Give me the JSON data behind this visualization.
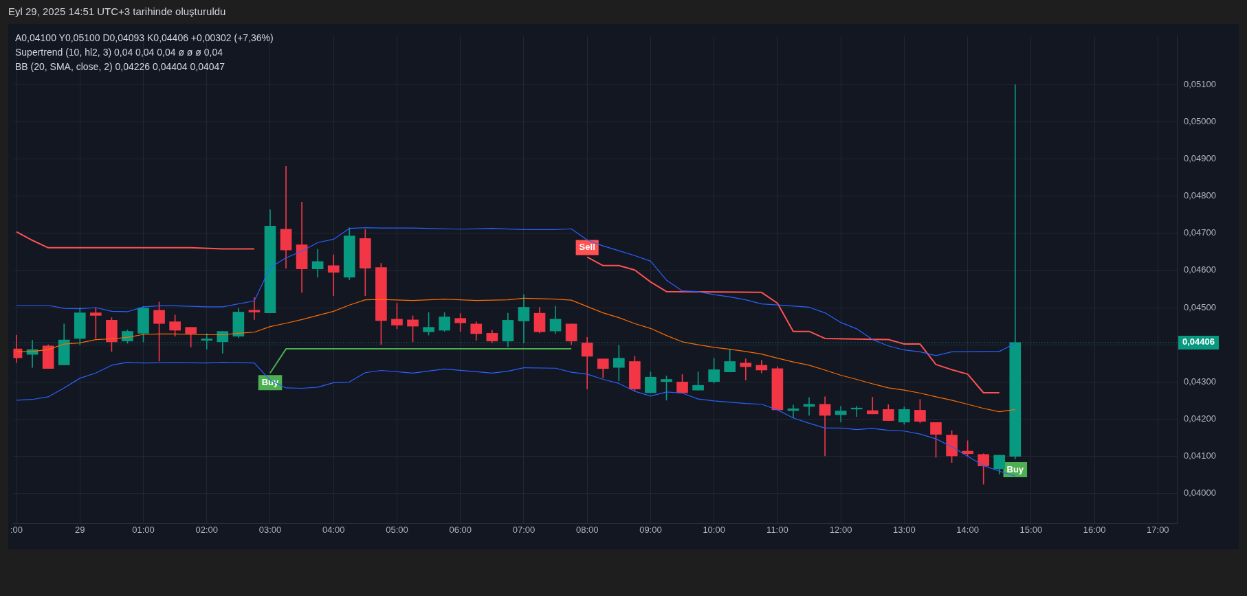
{
  "chart_data": {
    "type": "candlestick",
    "title": "Eyl 29, 2025 14:51 UTC+3 tarihinde oluşturuldu",
    "annotations": [
      "A0,04100  Y0,05100  D0,04093  K0,04406  +0,00302 (+7,36%)",
      "Supertrend (10, hl2, 3)  0,04  0,04  0,04  ø  ø  ø  0,04",
      "BB (20, SMA, close, 2)  0,04226  0,04404  0,04047",
      {
        "text": "Buy",
        "x": "2025-09-29T03:00",
        "y": 0.04324
      },
      {
        "text": "Sell",
        "x": "2025-09-29T08:00",
        "y": 0.04636
      },
      {
        "text": "Buy",
        "x": "2025-09-29T14:45",
        "y": 0.0409
      }
    ],
    "x": [
      "2025-09-28T23:00",
      "2025-09-28T23:15",
      "2025-09-28T23:30",
      "2025-09-28T23:45",
      "2025-09-29T00:00",
      "2025-09-29T00:15",
      "2025-09-29T00:30",
      "2025-09-29T00:45",
      "2025-09-29T01:00",
      "2025-09-29T01:15",
      "2025-09-29T01:30",
      "2025-09-29T01:45",
      "2025-09-29T02:00",
      "2025-09-29T02:15",
      "2025-09-29T02:30",
      "2025-09-29T02:45",
      "2025-09-29T03:00",
      "2025-09-29T03:15",
      "2025-09-29T03:30",
      "2025-09-29T03:45",
      "2025-09-29T04:00",
      "2025-09-29T04:15",
      "2025-09-29T04:30",
      "2025-09-29T04:45",
      "2025-09-29T05:00",
      "2025-09-29T05:15",
      "2025-09-29T05:30",
      "2025-09-29T05:45",
      "2025-09-29T06:00",
      "2025-09-29T06:15",
      "2025-09-29T06:30",
      "2025-09-29T06:45",
      "2025-09-29T07:00",
      "2025-09-29T07:15",
      "2025-09-29T07:30",
      "2025-09-29T07:45",
      "2025-09-29T08:00",
      "2025-09-29T08:15",
      "2025-09-29T08:30",
      "2025-09-29T08:45",
      "2025-09-29T09:00",
      "2025-09-29T09:15",
      "2025-09-29T09:30",
      "2025-09-29T09:45",
      "2025-09-29T10:00",
      "2025-09-29T10:15",
      "2025-09-29T10:30",
      "2025-09-29T10:45",
      "2025-09-29T11:00",
      "2025-09-29T11:15",
      "2025-09-29T11:30",
      "2025-09-29T11:45",
      "2025-09-29T12:00",
      "2025-09-29T12:15",
      "2025-09-29T12:30",
      "2025-09-29T12:45",
      "2025-09-29T13:00",
      "2025-09-29T13:15",
      "2025-09-29T13:30",
      "2025-09-29T13:45",
      "2025-09-29T14:00",
      "2025-09-29T14:15",
      "2025-09-29T14:30",
      "2025-09-29T14:45"
    ],
    "ohlc": [
      [
        0.04389,
        0.04426,
        0.04352,
        0.04365
      ],
      [
        0.04374,
        0.04412,
        0.04339,
        0.04387
      ],
      [
        0.04397,
        0.044,
        0.04336,
        0.04336
      ],
      [
        0.04346,
        0.04456,
        0.04346,
        0.04413
      ],
      [
        0.04417,
        0.045,
        0.044,
        0.04486
      ],
      [
        0.04486,
        0.045,
        0.04417,
        0.04479
      ],
      [
        0.04466,
        0.04473,
        0.04382,
        0.04408
      ],
      [
        0.0441,
        0.0444,
        0.04404,
        0.04436
      ],
      [
        0.04431,
        0.04503,
        0.04408,
        0.04499
      ],
      [
        0.04493,
        0.04515,
        0.04356,
        0.04457
      ],
      [
        0.04462,
        0.0448,
        0.04423,
        0.04439
      ],
      [
        0.04447,
        0.04447,
        0.04394,
        0.0443
      ],
      [
        0.04412,
        0.0443,
        0.04388,
        0.04416
      ],
      [
        0.04408,
        0.04436,
        0.04377,
        0.04436
      ],
      [
        0.04423,
        0.04498,
        0.04419,
        0.04488
      ],
      [
        0.04493,
        0.04527,
        0.04468,
        0.04488
      ],
      [
        0.04486,
        0.04763,
        0.04486,
        0.04719
      ],
      [
        0.04711,
        0.0488,
        0.04606,
        0.04655
      ],
      [
        0.04669,
        0.04784,
        0.04541,
        0.04604
      ],
      [
        0.04604,
        0.04657,
        0.04582,
        0.04624
      ],
      [
        0.04613,
        0.04642,
        0.04532,
        0.04595
      ],
      [
        0.04582,
        0.04715,
        0.04575,
        0.04693
      ],
      [
        0.04686,
        0.0471,
        0.04532,
        0.04606
      ],
      [
        0.04608,
        0.04619,
        0.04401,
        0.04465
      ],
      [
        0.04469,
        0.04512,
        0.04443,
        0.04453
      ],
      [
        0.04467,
        0.04478,
        0.04408,
        0.0445
      ],
      [
        0.04435,
        0.04487,
        0.04426,
        0.04447
      ],
      [
        0.04439,
        0.04487,
        0.04436,
        0.04475
      ],
      [
        0.04471,
        0.04484,
        0.04436,
        0.04459
      ],
      [
        0.04456,
        0.04462,
        0.04412,
        0.0443
      ],
      [
        0.04431,
        0.04439,
        0.04405,
        0.0441
      ],
      [
        0.0441,
        0.04485,
        0.04395,
        0.04466
      ],
      [
        0.04464,
        0.04535,
        0.04405,
        0.04501
      ],
      [
        0.04485,
        0.04501,
        0.04432,
        0.04435
      ],
      [
        0.04437,
        0.04504,
        0.0443,
        0.04469
      ],
      [
        0.04456,
        0.04456,
        0.04401,
        0.0441
      ],
      [
        0.04405,
        0.0442,
        0.04281,
        0.04369
      ],
      [
        0.04362,
        0.04362,
        0.04311,
        0.04336
      ],
      [
        0.04339,
        0.04399,
        0.04303,
        0.04364
      ],
      [
        0.04355,
        0.04369,
        0.04275,
        0.04281
      ],
      [
        0.04271,
        0.04327,
        0.04271,
        0.04313
      ],
      [
        0.04301,
        0.04316,
        0.04251,
        0.04307
      ],
      [
        0.043,
        0.0432,
        0.04271,
        0.04271
      ],
      [
        0.04278,
        0.04327,
        0.04278,
        0.04291
      ],
      [
        0.04301,
        0.04364,
        0.04297,
        0.04333
      ],
      [
        0.04327,
        0.04389,
        0.04327,
        0.04355
      ],
      [
        0.04351,
        0.04362,
        0.04305,
        0.04341
      ],
      [
        0.04345,
        0.04358,
        0.04324,
        0.04332
      ],
      [
        0.04336,
        0.04341,
        0.04225,
        0.04225
      ],
      [
        0.04223,
        0.04238,
        0.04204,
        0.04228
      ],
      [
        0.04234,
        0.04258,
        0.0421,
        0.0424
      ],
      [
        0.0424,
        0.0426,
        0.04101,
        0.0421
      ],
      [
        0.04212,
        0.04235,
        0.04192,
        0.04222
      ],
      [
        0.04227,
        0.04235,
        0.04207,
        0.0423
      ],
      [
        0.04223,
        0.04259,
        0.04214,
        0.04214
      ],
      [
        0.04226,
        0.04239,
        0.04196,
        0.04196
      ],
      [
        0.04192,
        0.04233,
        0.04186,
        0.04226
      ],
      [
        0.04224,
        0.04253,
        0.0419,
        0.04194
      ],
      [
        0.04191,
        0.04191,
        0.04097,
        0.04159
      ],
      [
        0.04157,
        0.04169,
        0.04083,
        0.04101
      ],
      [
        0.04114,
        0.04142,
        0.041,
        0.04107
      ],
      [
        0.04105,
        0.04107,
        0.04025,
        0.04074
      ],
      [
        0.04066,
        0.04103,
        0.04052,
        0.04103
      ],
      [
        0.041,
        0.051,
        0.04093,
        0.04406
      ]
    ],
    "colors": [
      "#f23645",
      "#089981",
      "#f23645",
      "#089981",
      "#089981",
      "#f23645",
      "#f23645",
      "#089981",
      "#089981",
      "#f23645",
      "#f23645",
      "#f23645",
      "#089981",
      "#089981",
      "#089981",
      "#f23645",
      "#089981",
      "#f23645",
      "#f23645",
      "#089981",
      "#f23645",
      "#089981",
      "#f23645",
      "#f23645",
      "#f23645",
      "#f23645",
      "#089981",
      "#089981",
      "#f23645",
      "#f23645",
      "#f23645",
      "#089981",
      "#089981",
      "#f23645",
      "#089981",
      "#f23645",
      "#f23645",
      "#f23645",
      "#089981",
      "#f23645",
      "#089981",
      "#089981",
      "#f23645",
      "#089981",
      "#089981",
      "#089981",
      "#f23645",
      "#f23645",
      "#f23645",
      "#089981",
      "#089981",
      "#f23645",
      "#089981",
      "#089981",
      "#f23645",
      "#f23645",
      "#089981",
      "#f23645",
      "#f23645",
      "#f23645",
      "#f23645",
      "#f23645",
      "#089981",
      "#089981"
    ],
    "series": [
      {
        "type": "line",
        "color": "#2962ff",
        "x": [
          "2025-09-28T23:00",
          "2025-09-28T23:30",
          "2025-09-28T23:45",
          "2025-09-29T00:00",
          "2025-09-29T00:15",
          "2025-09-29T00:30",
          "2025-09-29T00:45",
          "2025-09-29T01:00",
          "2025-09-29T01:15",
          "2025-09-29T01:30",
          "2025-09-29T02:00",
          "2025-09-29T02:15",
          "2025-09-29T02:45",
          "2025-09-29T03:00",
          "2025-09-29T03:15",
          "2025-09-29T03:30",
          "2025-09-29T03:45",
          "2025-09-29T04:00",
          "2025-09-29T04:15",
          "2025-09-29T04:30",
          "2025-09-29T04:45",
          "2025-09-29T05:15",
          "2025-09-29T06:00",
          "2025-09-29T06:30",
          "2025-09-29T07:00",
          "2025-09-29T07:30",
          "2025-09-29T07:45",
          "2025-09-29T08:00",
          "2025-09-29T08:15",
          "2025-09-29T08:30",
          "2025-09-29T08:45",
          "2025-09-29T09:00",
          "2025-09-29T09:15",
          "2025-09-29T09:30",
          "2025-09-29T09:45",
          "2025-09-29T10:00",
          "2025-09-29T10:15",
          "2025-09-29T10:30",
          "2025-09-29T10:45",
          "2025-09-29T11:00",
          "2025-09-29T11:30",
          "2025-09-29T11:45",
          "2025-09-29T12:00",
          "2025-09-29T12:15",
          "2025-09-29T12:30",
          "2025-09-29T12:45",
          "2025-09-29T13:00",
          "2025-09-29T13:15",
          "2025-09-29T13:30",
          "2025-09-29T13:45",
          "2025-09-29T14:00",
          "2025-09-29T14:15",
          "2025-09-29T14:30",
          "2025-09-29T14:45"
        ],
        "values": [
          0.04506,
          0.04506,
          0.04498,
          0.04497,
          0.045,
          0.0449,
          0.04489,
          0.04502,
          0.04505,
          0.04505,
          0.04502,
          0.04502,
          0.04518,
          0.04608,
          0.04634,
          0.04652,
          0.04675,
          0.04684,
          0.04713,
          0.04715,
          0.04714,
          0.04714,
          0.04711,
          0.04713,
          0.0471,
          0.0471,
          0.04712,
          0.04682,
          0.04666,
          0.04653,
          0.0464,
          0.04625,
          0.04574,
          0.04545,
          0.04543,
          0.04535,
          0.04529,
          0.04521,
          0.0451,
          0.04507,
          0.04501,
          0.04486,
          0.0446,
          0.04443,
          0.04414,
          0.04397,
          0.04386,
          0.04381,
          0.04371,
          0.04381,
          0.04381,
          0.04382,
          0.04382,
          0.04404
        ]
      },
      {
        "type": "line",
        "color": "#ff6d00",
        "x": [
          "2025-09-28T23:00",
          "2025-09-28T23:15",
          "2025-09-28T23:30",
          "2025-09-28T23:45",
          "2025-09-29T00:00",
          "2025-09-29T00:15",
          "2025-09-29T00:30",
          "2025-09-29T00:45",
          "2025-09-29T01:00",
          "2025-09-29T01:15",
          "2025-09-29T01:30",
          "2025-09-29T01:45",
          "2025-09-29T02:00",
          "2025-09-29T02:15",
          "2025-09-29T02:30",
          "2025-09-29T02:45",
          "2025-09-29T03:00",
          "2025-09-29T03:15",
          "2025-09-29T03:30",
          "2025-09-29T03:45",
          "2025-09-29T04:00",
          "2025-09-29T04:15",
          "2025-09-29T04:30",
          "2025-09-29T04:45",
          "2025-09-29T05:15",
          "2025-09-29T05:45",
          "2025-09-29T06:15",
          "2025-09-29T06:45",
          "2025-09-29T07:00",
          "2025-09-29T07:30",
          "2025-09-29T07:45",
          "2025-09-29T08:00",
          "2025-09-29T08:15",
          "2025-09-29T08:30",
          "2025-09-29T08:45",
          "2025-09-29T09:00",
          "2025-09-29T09:15",
          "2025-09-29T09:30",
          "2025-09-29T09:45",
          "2025-09-29T10:00",
          "2025-09-29T10:15",
          "2025-09-29T10:30",
          "2025-09-29T10:45",
          "2025-09-29T11:00",
          "2025-09-29T11:15",
          "2025-09-29T11:30",
          "2025-09-29T11:45",
          "2025-09-29T12:00",
          "2025-09-29T12:15",
          "2025-09-29T12:30",
          "2025-09-29T12:45",
          "2025-09-29T13:00",
          "2025-09-29T13:15",
          "2025-09-29T13:30",
          "2025-09-29T13:45",
          "2025-09-29T14:00",
          "2025-09-29T14:15",
          "2025-09-29T14:30",
          "2025-09-29T14:45"
        ],
        "values": [
          0.04381,
          0.04382,
          0.04387,
          0.04402,
          0.04405,
          0.04414,
          0.04416,
          0.0442,
          0.04428,
          0.04429,
          0.04429,
          0.04428,
          0.04427,
          0.04427,
          0.04431,
          0.04434,
          0.04449,
          0.04458,
          0.04468,
          0.04479,
          0.0449,
          0.04507,
          0.04521,
          0.04522,
          0.04519,
          0.04523,
          0.04519,
          0.04521,
          0.04525,
          0.04523,
          0.0452,
          0.04503,
          0.04486,
          0.04473,
          0.04457,
          0.04444,
          0.04425,
          0.04408,
          0.044,
          0.04393,
          0.04388,
          0.04382,
          0.04375,
          0.04364,
          0.04354,
          0.04345,
          0.04332,
          0.04318,
          0.04307,
          0.04295,
          0.04284,
          0.04278,
          0.0427,
          0.0426,
          0.04251,
          0.0424,
          0.04229,
          0.0422,
          0.04226
        ]
      },
      {
        "type": "line",
        "color": "#2962ff",
        "x": [
          "2025-09-28T23:00",
          "2025-09-28T23:15",
          "2025-09-28T23:30",
          "2025-09-28T23:45",
          "2025-09-29T00:00",
          "2025-09-29T00:15",
          "2025-09-29T00:30",
          "2025-09-29T00:45",
          "2025-09-29T01:00",
          "2025-09-29T01:30",
          "2025-09-29T02:00",
          "2025-09-29T02:15",
          "2025-09-29T02:45",
          "2025-09-29T03:00",
          "2025-09-29T03:15",
          "2025-09-29T03:30",
          "2025-09-29T03:45",
          "2025-09-29T04:00",
          "2025-09-29T04:15",
          "2025-09-29T04:30",
          "2025-09-29T04:45",
          "2025-09-29T05:15",
          "2025-09-29T05:45",
          "2025-09-29T06:30",
          "2025-09-29T06:45",
          "2025-09-29T07:00",
          "2025-09-29T07:30",
          "2025-09-29T07:45",
          "2025-09-29T08:00",
          "2025-09-29T08:15",
          "2025-09-29T08:30",
          "2025-09-29T08:45",
          "2025-09-29T09:00",
          "2025-09-29T09:15",
          "2025-09-29T09:30",
          "2025-09-29T09:45",
          "2025-09-29T10:00",
          "2025-09-29T10:30",
          "2025-09-29T10:45",
          "2025-09-29T11:00",
          "2025-09-29T11:15",
          "2025-09-29T11:30",
          "2025-09-29T11:45",
          "2025-09-29T12:00",
          "2025-09-29T12:15",
          "2025-09-29T12:30",
          "2025-09-29T12:45",
          "2025-09-29T13:00",
          "2025-09-29T13:15",
          "2025-09-29T13:30",
          "2025-09-29T13:45",
          "2025-09-29T14:00",
          "2025-09-29T14:15",
          "2025-09-29T14:30",
          "2025-09-29T14:45"
        ],
        "values": [
          0.04251,
          0.04253,
          0.0426,
          0.04284,
          0.0431,
          0.04324,
          0.04345,
          0.04353,
          0.04351,
          0.04352,
          0.04351,
          0.04353,
          0.04351,
          0.04305,
          0.04284,
          0.04283,
          0.04286,
          0.04298,
          0.043,
          0.04325,
          0.04331,
          0.04324,
          0.04335,
          0.04324,
          0.04329,
          0.04338,
          0.04337,
          0.04326,
          0.04321,
          0.04307,
          0.04296,
          0.04275,
          0.04262,
          0.04273,
          0.0427,
          0.04254,
          0.04249,
          0.04242,
          0.0424,
          0.04225,
          0.04203,
          0.04189,
          0.04176,
          0.04176,
          0.04172,
          0.04175,
          0.0417,
          0.04168,
          0.0416,
          0.04147,
          0.04126,
          0.041,
          0.04075,
          0.0406,
          0.04047
        ]
      },
      {
        "type": "line",
        "color": "#ff5252",
        "x": [
          "2025-09-28T23:00",
          "2025-09-28T23:15",
          "2025-09-28T23:30",
          "2025-09-29T01:45",
          "2025-09-29T02:15",
          "2025-09-29T02:45",
          "2025-09-29T05:00",
          "2025-09-29T08:00",
          "2025-09-29T08:15",
          "2025-09-29T08:30",
          "2025-09-29T08:45",
          "2025-09-29T09:00",
          "2025-09-29T09:15",
          "2025-09-29T10:45",
          "2025-09-29T11:00",
          "2025-09-29T11:15",
          "2025-09-29T11:30",
          "2025-09-29T11:45",
          "2025-09-29T12:45",
          "2025-09-29T13:00",
          "2025-09-29T13:15",
          "2025-09-29T13:30",
          "2025-09-29T13:45",
          "2025-09-29T14:00",
          "2025-09-29T14:15",
          "2025-09-29T14:30"
        ],
        "values": [
          0.04704,
          0.04681,
          0.04661,
          0.04661,
          0.04658,
          0.04658,
          null,
          0.04636,
          0.04613,
          0.04613,
          0.04601,
          0.04569,
          0.04543,
          0.04541,
          0.04512,
          0.04436,
          0.04436,
          0.04417,
          0.04414,
          0.04402,
          0.04402,
          0.04347,
          0.04333,
          0.04321,
          0.04271,
          0.04271
        ]
      },
      {
        "type": "line",
        "color": "#4caf50",
        "x": [
          "2025-09-29T03:00",
          "2025-09-29T03:15",
          "2025-09-29T07:45"
        ],
        "values": [
          0.04324,
          0.04389,
          0.04389
        ]
      }
    ],
    "xlim": [
      "2025-09-28T22:57",
      "2025-09-29T17:18"
    ],
    "xticks": [
      {
        "value": "2025-09-28T23:00",
        "label": ":00"
      },
      {
        "value": "2025-09-29T00:00",
        "label": "29"
      },
      {
        "value": "2025-09-29T01:00",
        "label": "01:00"
      },
      {
        "value": "2025-09-29T02:00",
        "label": "02:00"
      },
      {
        "value": "2025-09-29T03:00",
        "label": "03:00"
      },
      {
        "value": "2025-09-29T04:00",
        "label": "04:00"
      },
      {
        "value": "2025-09-29T05:00",
        "label": "05:00"
      },
      {
        "value": "2025-09-29T06:00",
        "label": "06:00"
      },
      {
        "value": "2025-09-29T07:00",
        "label": "07:00"
      },
      {
        "value": "2025-09-29T08:00",
        "label": "08:00"
      },
      {
        "value": "2025-09-29T09:00",
        "label": "09:00"
      },
      {
        "value": "2025-09-29T10:00",
        "label": "10:00"
      },
      {
        "value": "2025-09-29T11:00",
        "label": "11:00"
      },
      {
        "value": "2025-09-29T12:00",
        "label": "12:00"
      },
      {
        "value": "2025-09-29T13:00",
        "label": "13:00"
      },
      {
        "value": "2025-09-29T14:00",
        "label": "14:00"
      },
      {
        "value": "2025-09-29T15:00",
        "label": "15:00"
      },
      {
        "value": "2025-09-29T16:00",
        "label": "16:00"
      },
      {
        "value": "2025-09-29T17:00",
        "label": "17:00"
      }
    ],
    "ylim": [
      0.0392,
      0.0523
    ],
    "yticks": [
      {
        "value": 0.04,
        "label": "0,04000"
      },
      {
        "value": 0.041,
        "label": "0,04100"
      },
      {
        "value": 0.042,
        "label": "0,04200"
      },
      {
        "value": 0.043,
        "label": "0,04300"
      },
      {
        "value": 0.044,
        "label": null
      },
      {
        "value": 0.045,
        "label": "0,04500"
      },
      {
        "value": 0.046,
        "label": "0,04600"
      },
      {
        "value": 0.047,
        "label": "0,04700"
      },
      {
        "value": 0.048,
        "label": "0,04800"
      },
      {
        "value": 0.049,
        "label": "0,04900"
      },
      {
        "value": 0.05,
        "label": "0,05000"
      },
      {
        "value": 0.051,
        "label": "0,05100"
      }
    ],
    "ref_lines": [
      {
        "axis": "y",
        "value": 0.04406,
        "label": "0,04406",
        "color": "#089981",
        "line_style": "dotted"
      }
    ],
    "grid": true
  }
}
